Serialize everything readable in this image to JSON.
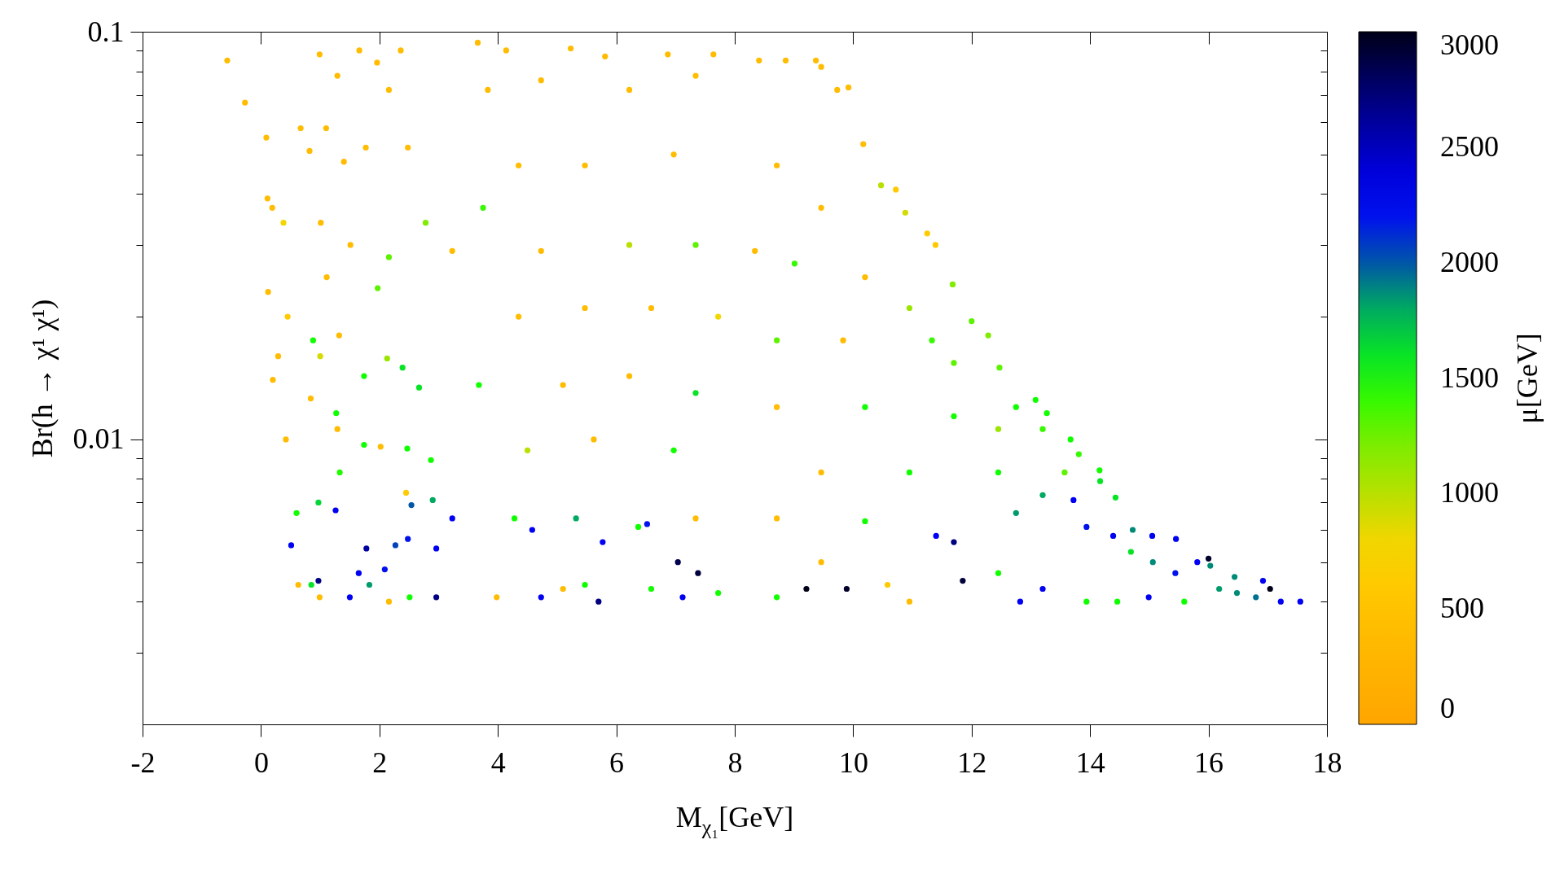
{
  "chart_data": {
    "type": "scatter",
    "xlabel": "M$_{χ₁}$[GeV]",
    "ylabel": "Br(h → χ¹ χ¹)",
    "clabel": "μ[GeV]",
    "marker": "circle",
    "log": "y",
    "xlim": [
      -2,
      18
    ],
    "xticks": [
      -2,
      0,
      2,
      4,
      6,
      8,
      10,
      12,
      14,
      16,
      18
    ],
    "ylim": [
      0.002,
      0.1
    ],
    "yticks": [
      {
        "value": 0.003,
        "label": null
      },
      {
        "value": 0.004,
        "label": null
      },
      {
        "value": 0.005,
        "label": null
      },
      {
        "value": 0.006,
        "label": null
      },
      {
        "value": 0.007,
        "label": null
      },
      {
        "value": 0.008,
        "label": null
      },
      {
        "value": 0.009,
        "label": null
      },
      0.01,
      {
        "value": 0.02,
        "label": null
      },
      {
        "value": 0.03,
        "label": null
      },
      {
        "value": 0.04,
        "label": null
      },
      {
        "value": 0.05,
        "label": null
      },
      {
        "value": 0.06,
        "label": null
      },
      {
        "value": 0.07,
        "label": null
      },
      {
        "value": 0.08,
        "label": null
      },
      {
        "value": 0.09,
        "label": null
      },
      0.1
    ],
    "clim": [
      0,
      3000
    ],
    "cticks": [
      0,
      500,
      1000,
      1500,
      2000,
      2500,
      3000
    ],
    "x": [
      -0.57,
      -0.27,
      0.09,
      0.11,
      0.19,
      0.38,
      0.12,
      0.45,
      0.29,
      0.2,
      0.42,
      0.6,
      0.51,
      0.63,
      0.85,
      0.97,
      0.99,
      1.5,
      0.67,
      0.82,
      0.99,
      1.29,
      1.1,
      1.4,
      1.51,
      1.01,
      1.11,
      1.32,
      0.88,
      1.0,
      0.84,
      1.29,
      1.27,
      1.33,
      1.26,
      0.97,
      1.78,
      1.65,
      1.83,
      2.09,
      2.27,
      2.48,
      2.54,
      2.9,
      2.96,
      2.96,
      3.23,
      2.16,
      2.51,
      2.02,
      1.74,
      1.74,
      2.13,
      2.16,
      1.97,
      1.77,
      1.96,
      2.16,
      2.48,
      2.78,
      2.39,
      2.67,
      2.47,
      2.87,
      2.45,
      1.66,
      2.36,
      3.66,
      4.14,
      5.23,
      5.81,
      6.87,
      7.64,
      3.75,
      3.83,
      4.73,
      6.22,
      7.34,
      4.35,
      5.47,
      6.97,
      3.23,
      4.73,
      6.22,
      7.34,
      4.35,
      5.47,
      6.59,
      7.72,
      3.68,
      5.1,
      6.22,
      7.34,
      4.5,
      5.62,
      6.97,
      4.28,
      5.32,
      6.37,
      7.34,
      4.58,
      5.77,
      6.52,
      7.04,
      7.38,
      4.73,
      5.7,
      7.12,
      5.47,
      6.59,
      3.98,
      5.1,
      7.72,
      8.41,
      8.86,
      9.37,
      9.46,
      9.73,
      9.92,
      10.17,
      10.47,
      10.72,
      10.88,
      11.25,
      11.39,
      11.68,
      12.0,
      12.28,
      12.47,
      13.08,
      13.27,
      13.67,
      13.81,
      14.16,
      14.43,
      14.72,
      15.05,
      15.45,
      16.0,
      16.44,
      16.92,
      17.04,
      17.22,
      17.55,
      8.71,
      9.46,
      8.34,
      9.01,
      10.2,
      10.95,
      8.71,
      9.83,
      11.33,
      11.7,
      8.71,
      10.2,
      11.7,
      12.45,
      12.75,
      13.2,
      9.46,
      10.95,
      12.45,
      13.57,
      13.2,
      13.72,
      14.17,
      8.71,
      10.2,
      11.4,
      11.7,
      12.75,
      13.94,
      14.39,
      14.69,
      15.06,
      15.44,
      15.81,
      16.03,
      16.18,
      16.48,
      16.8,
      15.59,
      14.99,
      14.46,
      9.21,
      9.89,
      11.85,
      9.46,
      10.58,
      12.45,
      13.2,
      8.71,
      10.95,
      12.82,
      13.94
    ],
    "values": [
      0.085,
      0.067,
      0.055,
      0.039,
      0.037,
      0.034,
      0.023,
      0.02,
      0.016,
      0.014,
      0.01,
      0.0066,
      0.0055,
      0.0044,
      0.0044,
      0.0045,
      0.0041,
      0.0041,
      0.058,
      0.051,
      0.088,
      0.078,
      0.058,
      0.048,
      0.03,
      0.034,
      0.025,
      0.018,
      0.0175,
      0.016,
      0.0126,
      0.0106,
      0.0116,
      0.0083,
      0.0067,
      0.007,
      0.0054,
      0.0047,
      0.0044,
      0.0048,
      0.0055,
      0.0057,
      0.0069,
      0.0071,
      0.0054,
      0.0041,
      0.0064,
      0.004,
      0.0041,
      0.0096,
      0.0097,
      0.0143,
      0.0158,
      0.028,
      0.0235,
      0.052,
      0.084,
      0.072,
      0.052,
      0.034,
      0.015,
      0.0134,
      0.0095,
      0.0089,
      0.0074,
      0.09,
      0.09,
      0.094,
      0.09,
      0.091,
      0.087,
      0.088,
      0.088,
      0.037,
      0.072,
      0.076,
      0.072,
      0.078,
      0.047,
      0.047,
      0.05,
      0.029,
      0.029,
      0.03,
      0.03,
      0.02,
      0.021,
      0.021,
      0.02,
      0.0136,
      0.0136,
      0.0143,
      0.013,
      0.0094,
      0.01,
      0.0094,
      0.0064,
      0.0064,
      0.0061,
      0.0064,
      0.006,
      0.0056,
      0.0062,
      0.005,
      0.0047,
      0.0041,
      0.004,
      0.0041,
      0.0044,
      0.0043,
      0.0041,
      0.0043,
      0.0042,
      0.085,
      0.085,
      0.085,
      0.082,
      0.072,
      0.073,
      0.053,
      0.042,
      0.041,
      0.036,
      0.032,
      0.03,
      0.024,
      0.0195,
      0.018,
      0.015,
      0.0125,
      0.0116,
      0.01,
      0.0092,
      0.0084,
      0.0072,
      0.006,
      0.0058,
      0.0057,
      0.0051,
      0.0046,
      0.0045,
      0.0043,
      0.004,
      0.004,
      0.047,
      0.037,
      0.029,
      0.027,
      0.025,
      0.021,
      0.0175,
      0.0175,
      0.0175,
      0.0154,
      0.012,
      0.012,
      0.0114,
      0.0106,
      0.012,
      0.0106,
      0.0083,
      0.0083,
      0.0083,
      0.0083,
      0.0073,
      0.0071,
      0.0079,
      0.0064,
      0.0063,
      0.0058,
      0.0056,
      0.0066,
      0.0061,
      0.0058,
      0.0053,
      0.005,
      0.0047,
      0.005,
      0.0049,
      0.0043,
      0.0042,
      0.0041,
      0.004,
      0.0041,
      0.004,
      0.0043,
      0.0043,
      0.0045,
      0.005,
      0.0044,
      0.0047,
      0.0043,
      0.0041,
      0.004,
      0.004,
      0.004
    ],
    "cvalues": [
      400,
      400,
      400,
      400,
      400,
      800,
      400,
      630,
      400,
      400,
      400,
      1500,
      2300,
      400,
      1600,
      2700,
      400,
      2300,
      400,
      400,
      400,
      400,
      400,
      400,
      400,
      400,
      400,
      400,
      1500,
      900,
      400,
      400,
      1500,
      1450,
      2300,
      1650,
      2600,
      2300,
      1850,
      2200,
      2050,
      2200,
      2000,
      1800,
      2300,
      2700,
      2300,
      400,
      1500,
      400,
      1500,
      1500,
      1100,
      1300,
      1300,
      400,
      400,
      400,
      400,
      1200,
      1600,
      1600,
      1500,
      1500,
      630,
      400,
      400,
      400,
      400,
      400,
      400,
      400,
      400,
      1400,
      400,
      400,
      400,
      400,
      400,
      400,
      400,
      400,
      400,
      1000,
      1300,
      400,
      400,
      400,
      800,
      1500,
      400,
      400,
      1600,
      1000,
      400,
      1500,
      1500,
      1800,
      1500,
      400,
      2300,
      2300,
      2200,
      2850,
      2900,
      2300,
      2700,
      2300,
      1500,
      1500,
      400,
      400,
      1500,
      400,
      400,
      400,
      400,
      400,
      400,
      400,
      1000,
      600,
      900,
      630,
      600,
      1200,
      1300,
      1200,
      1300,
      1500,
      1500,
      1500,
      1400,
      1500,
      1600,
      1900,
      2300,
      2300,
      2950,
      1900,
      2300,
      3000,
      2300,
      2300,
      400,
      400,
      400,
      1400,
      400,
      1100,
      1300,
      400,
      1400,
      1300,
      400,
      1500,
      1500,
      1100,
      1500,
      1400,
      400,
      1500,
      1500,
      1300,
      1800,
      2300,
      1600,
      400,
      1500,
      2300,
      2700,
      1850,
      2200,
      2300,
      1600,
      1900,
      2200,
      2300,
      1900,
      1850,
      1900,
      1950,
      1500,
      2300,
      1500,
      3000,
      2950,
      2900,
      400,
      630,
      1500,
      2300,
      1500,
      400,
      2300,
      1500
    ]
  }
}
